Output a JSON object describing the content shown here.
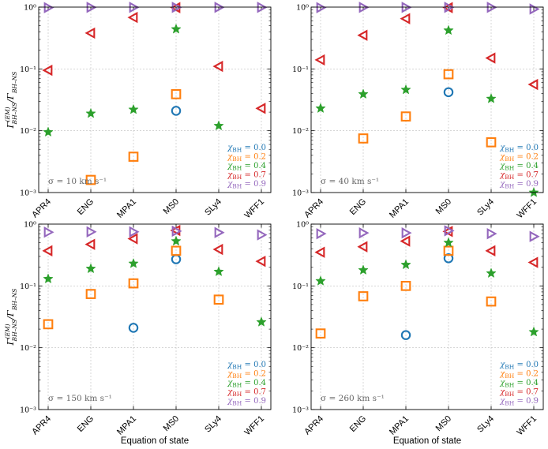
{
  "chart_data": [
    {
      "type": "scatter",
      "panel": "top-left",
      "categories": [
        "APR4",
        "ENG",
        "MPA1",
        "MS0",
        "SLy4",
        "WFF1"
      ],
      "ylabel": "Γ^(EM)_BH–NS / Γ_BH–NS",
      "xlabel": "",
      "yscale": "log",
      "ylim": [
        0.001,
        1
      ],
      "yticks": [
        "10⁻³",
        "10⁻²",
        "10⁻¹",
        "10⁰"
      ],
      "annotation": "σ = 10 km s⁻¹",
      "legend_loc": "bottom-right",
      "series": [
        {
          "name": "χBH = 0.0",
          "label": "χ",
          "sub": "BH",
          "eq": " = 0.0",
          "color": "#1f77b4",
          "marker": "circle",
          "values": [
            null,
            null,
            null,
            0.021,
            null,
            null
          ]
        },
        {
          "name": "χBH = 0.2",
          "label": "χ",
          "sub": "BH",
          "eq": " = 0.2",
          "color": "#ff7f0e",
          "marker": "square",
          "values": [
            null,
            0.0016,
            0.0038,
            0.039,
            null,
            null
          ]
        },
        {
          "name": "χBH = 0.4",
          "label": "χ",
          "sub": "BH",
          "eq": " = 0.4",
          "color": "#2ca02c",
          "marker": "star",
          "values": [
            0.0095,
            0.019,
            0.022,
            0.44,
            0.012,
            null
          ]
        },
        {
          "name": "χBH = 0.7",
          "label": "χ",
          "sub": "BH",
          "eq": " = 0.7",
          "color": "#d62728",
          "marker": "triangle-left",
          "values": [
            0.095,
            0.38,
            0.68,
            0.98,
            0.11,
            0.023
          ]
        },
        {
          "name": "χBH = 0.9",
          "label": "χ",
          "sub": "BH",
          "eq": " = 0.9",
          "color": "#9467bd",
          "marker": "triangle-right",
          "values": [
            0.98,
            0.99,
            0.99,
            0.99,
            0.99,
            0.99
          ]
        }
      ]
    },
    {
      "type": "scatter",
      "panel": "top-right",
      "categories": [
        "APR4",
        "ENG",
        "MPA1",
        "MS0",
        "SLy4",
        "WFF1"
      ],
      "ylabel": "",
      "xlabel": "",
      "yscale": "log",
      "ylim": [
        0.001,
        1
      ],
      "yticks": [
        "10⁻³",
        "10⁻²",
        "10⁻¹",
        "10⁰"
      ],
      "annotation": "σ = 40 km s⁻¹",
      "legend_loc": "bottom-right",
      "series": [
        {
          "name": "χBH = 0.0",
          "label": "χ",
          "sub": "BH",
          "eq": " = 0.0",
          "color": "#1f77b4",
          "marker": "circle",
          "values": [
            null,
            null,
            null,
            0.042,
            null,
            null
          ]
        },
        {
          "name": "χBH = 0.2",
          "label": "χ",
          "sub": "BH",
          "eq": " = 0.2",
          "color": "#ff7f0e",
          "marker": "square",
          "values": [
            null,
            0.0075,
            0.017,
            0.082,
            0.0065,
            null
          ]
        },
        {
          "name": "χBH = 0.4",
          "label": "χ",
          "sub": "BH",
          "eq": " = 0.4",
          "color": "#2ca02c",
          "marker": "star",
          "values": [
            0.023,
            0.039,
            0.046,
            0.42,
            0.033,
            0.001
          ]
        },
        {
          "name": "χBH = 0.7",
          "label": "χ",
          "sub": "BH",
          "eq": " = 0.7",
          "color": "#d62728",
          "marker": "triangle-left",
          "values": [
            0.14,
            0.35,
            0.65,
            0.98,
            0.15,
            0.056
          ]
        },
        {
          "name": "χBH = 0.9",
          "label": "χ",
          "sub": "BH",
          "eq": " = 0.9",
          "color": "#9467bd",
          "marker": "triangle-right",
          "values": [
            0.98,
            0.99,
            0.99,
            0.99,
            0.99,
            0.93
          ]
        }
      ]
    },
    {
      "type": "scatter",
      "panel": "bottom-left",
      "categories": [
        "APR4",
        "ENG",
        "MPA1",
        "MS0",
        "SLy4",
        "WFF1"
      ],
      "ylabel": "Γ^(EM)_BH–NS / Γ_BH–NS",
      "xlabel": "Equation of state",
      "yscale": "log",
      "ylim": [
        0.001,
        1
      ],
      "yticks": [
        "10⁻³",
        "10⁻²",
        "10⁻¹",
        "10⁰"
      ],
      "annotation": "σ = 150 km s⁻¹",
      "legend_loc": "bottom-right",
      "series": [
        {
          "name": "χBH = 0.0",
          "label": "χ",
          "sub": "BH",
          "eq": " = 0.0",
          "color": "#1f77b4",
          "marker": "circle",
          "values": [
            null,
            null,
            0.021,
            0.27,
            null,
            null
          ]
        },
        {
          "name": "χBH = 0.2",
          "label": "χ",
          "sub": "BH",
          "eq": " = 0.2",
          "color": "#ff7f0e",
          "marker": "square",
          "values": [
            0.024,
            0.074,
            0.11,
            0.37,
            0.06,
            null
          ]
        },
        {
          "name": "χBH = 0.4",
          "label": "χ",
          "sub": "BH",
          "eq": " = 0.4",
          "color": "#2ca02c",
          "marker": "star",
          "values": [
            0.13,
            0.19,
            0.23,
            0.53,
            0.17,
            0.026
          ]
        },
        {
          "name": "χBH = 0.7",
          "label": "χ",
          "sub": "BH",
          "eq": " = 0.7",
          "color": "#d62728",
          "marker": "triangle-left",
          "values": [
            0.37,
            0.47,
            0.58,
            0.79,
            0.39,
            0.25
          ]
        },
        {
          "name": "χBH = 0.9",
          "label": "χ",
          "sub": "BH",
          "eq": " = 0.9",
          "color": "#9467bd",
          "marker": "triangle-right",
          "values": [
            0.74,
            0.75,
            0.75,
            0.77,
            0.73,
            0.67
          ]
        }
      ]
    },
    {
      "type": "scatter",
      "panel": "bottom-right",
      "categories": [
        "APR4",
        "ENG",
        "MPA1",
        "MS0",
        "SLy4",
        "WFF1"
      ],
      "ylabel": "",
      "xlabel": "Equation of state",
      "yscale": "log",
      "ylim": [
        0.001,
        1
      ],
      "yticks": [
        "10⁻³",
        "10⁻²",
        "10⁻¹",
        "10⁰"
      ],
      "annotation": "σ = 260 km s⁻¹",
      "legend_loc": "bottom-right",
      "series": [
        {
          "name": "χBH = 0.0",
          "label": "χ",
          "sub": "BH",
          "eq": " = 0.0",
          "color": "#1f77b4",
          "marker": "circle",
          "values": [
            null,
            null,
            0.016,
            0.28,
            null,
            null
          ]
        },
        {
          "name": "χBH = 0.2",
          "label": "χ",
          "sub": "BH",
          "eq": " = 0.2",
          "color": "#ff7f0e",
          "marker": "square",
          "values": [
            0.017,
            0.068,
            0.1,
            0.37,
            0.056,
            null
          ]
        },
        {
          "name": "χBH = 0.4",
          "label": "χ",
          "sub": "BH",
          "eq": " = 0.4",
          "color": "#2ca02c",
          "marker": "star",
          "values": [
            0.12,
            0.18,
            0.22,
            0.5,
            0.16,
            0.018
          ]
        },
        {
          "name": "χBH = 0.7",
          "label": "χ",
          "sub": "BH",
          "eq": " = 0.7",
          "color": "#d62728",
          "marker": "triangle-left",
          "values": [
            0.35,
            0.43,
            0.53,
            0.76,
            0.37,
            0.24
          ]
        },
        {
          "name": "χBH = 0.9",
          "label": "χ",
          "sub": "BH",
          "eq": " = 0.9",
          "color": "#9467bd",
          "marker": "triangle-right",
          "values": [
            0.7,
            0.72,
            0.72,
            0.78,
            0.7,
            0.63
          ]
        }
      ]
    }
  ]
}
